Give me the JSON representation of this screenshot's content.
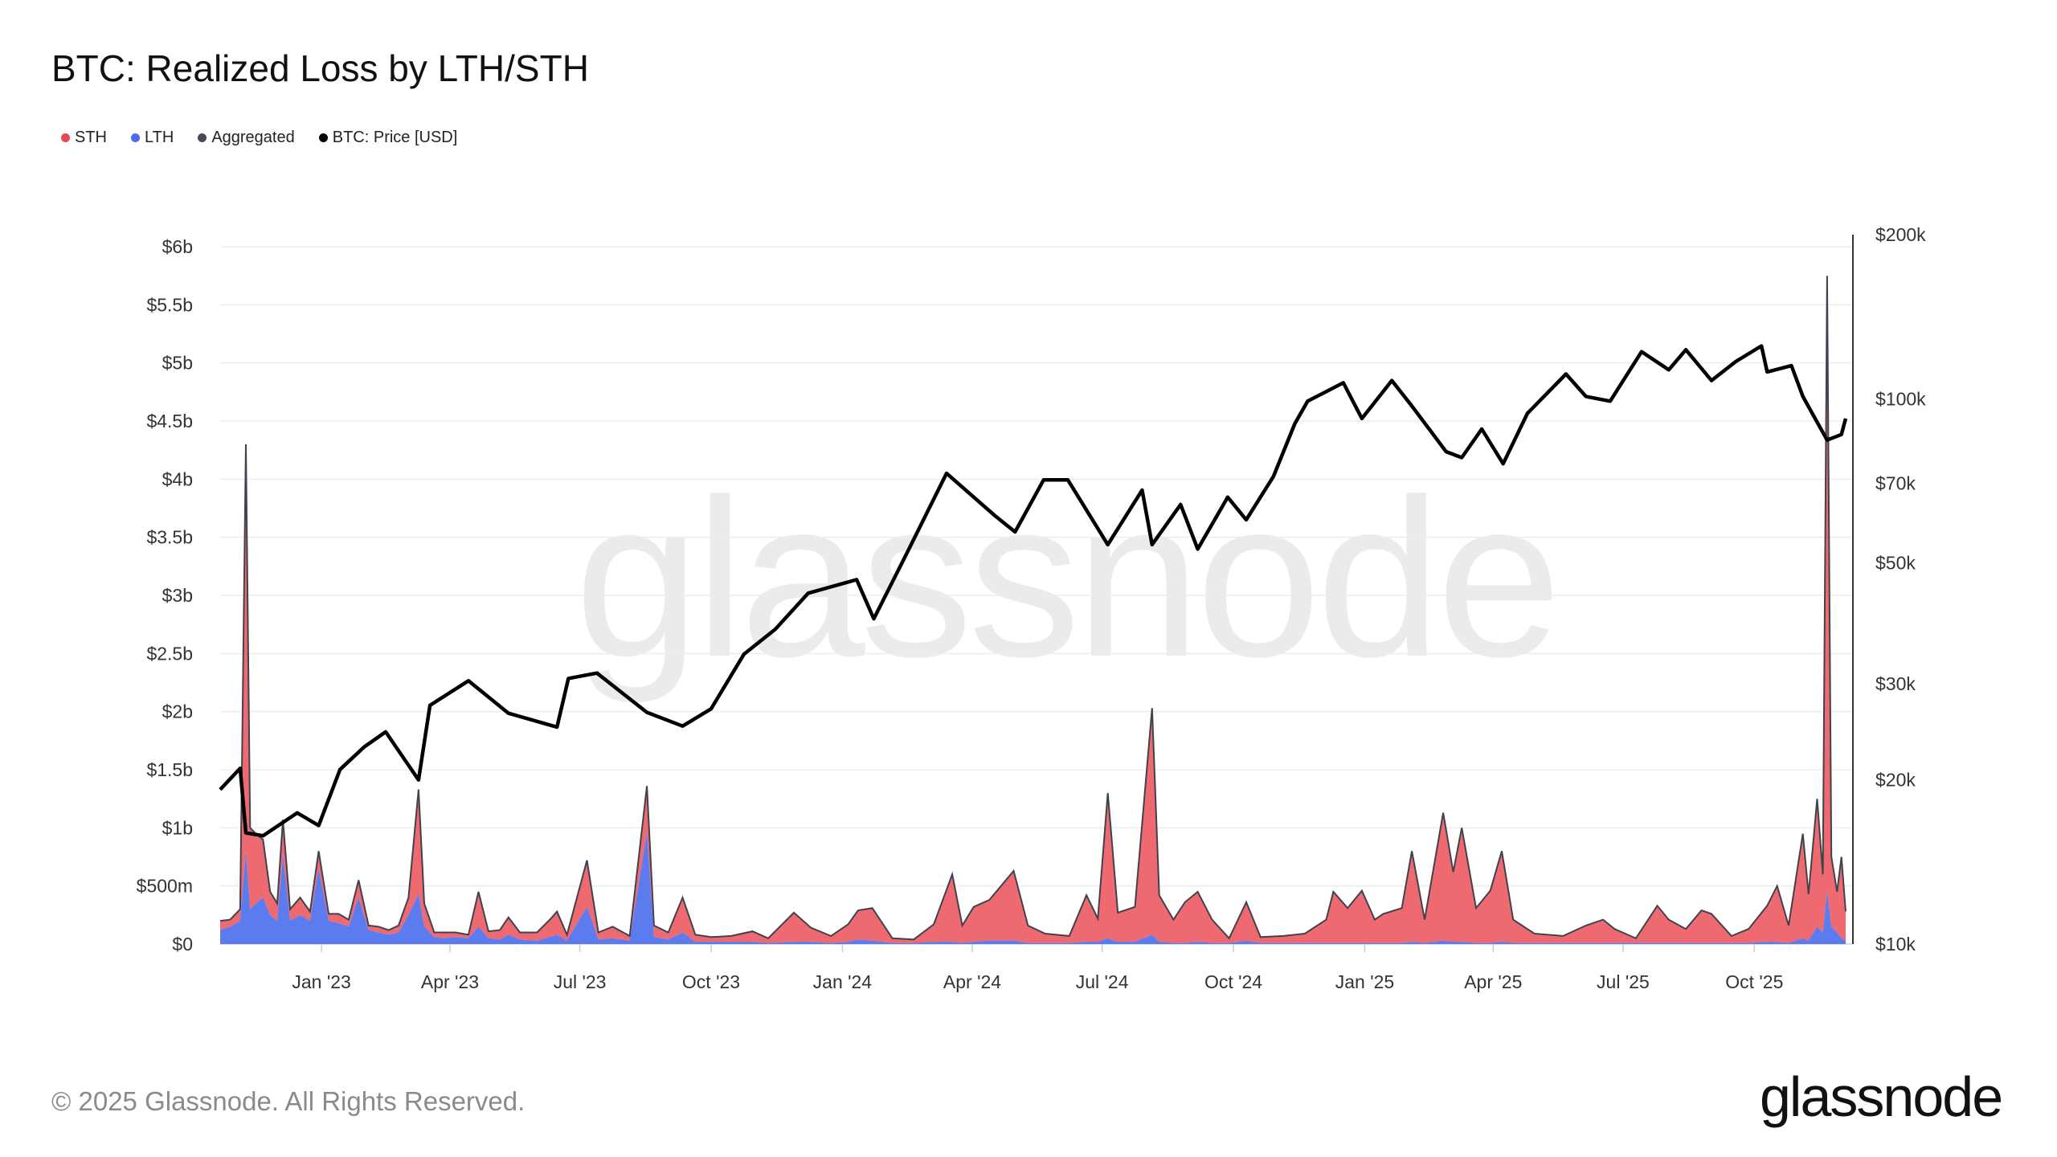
{
  "title": "BTC: Realized Loss by LTH/STH",
  "legend": [
    {
      "label": "STH",
      "color": "#e8474f"
    },
    {
      "label": "LTH",
      "color": "#4a6cec"
    },
    {
      "label": "Aggregated",
      "color": "#474b57"
    },
    {
      "label": "BTC: Price [USD]",
      "color": "#000000"
    }
  ],
  "watermark": "glassnode",
  "footer": {
    "copyright": "© 2025 Glassnode. All Rights Reserved.",
    "logo": "glassnode"
  },
  "chart_data": {
    "type": "area",
    "title": "BTC: Realized Loss by LTH/STH",
    "x_range": [
      "2022-10-22",
      "2025-12-04"
    ],
    "x_ticks": [
      {
        "date": "2023-01-01",
        "label": "Jan '23"
      },
      {
        "date": "2023-04-01",
        "label": "Apr '23"
      },
      {
        "date": "2023-07-01",
        "label": "Jul '23"
      },
      {
        "date": "2023-10-01",
        "label": "Oct '23"
      },
      {
        "date": "2024-01-01",
        "label": "Jan '24"
      },
      {
        "date": "2024-04-01",
        "label": "Apr '24"
      },
      {
        "date": "2024-07-01",
        "label": "Jul '24"
      },
      {
        "date": "2024-10-01",
        "label": "Oct '24"
      },
      {
        "date": "2025-01-01",
        "label": "Jan '25"
      },
      {
        "date": "2025-04-01",
        "label": "Apr '25"
      },
      {
        "date": "2025-07-01",
        "label": "Jul '25"
      },
      {
        "date": "2025-10-01",
        "label": "Oct '25"
      }
    ],
    "y_left": {
      "unit": "USD millions",
      "range": [
        0,
        6000
      ],
      "grid": true,
      "ticks": [
        {
          "v": 0,
          "label": "$0"
        },
        {
          "v": 500,
          "label": "$500m"
        },
        {
          "v": 1000,
          "label": "$1b"
        },
        {
          "v": 1500,
          "label": "$1.5b"
        },
        {
          "v": 2000,
          "label": "$2b"
        },
        {
          "v": 2500,
          "label": "$2.5b"
        },
        {
          "v": 3000,
          "label": "$3b"
        },
        {
          "v": 3500,
          "label": "$3.5b"
        },
        {
          "v": 4000,
          "label": "$4b"
        },
        {
          "v": 4500,
          "label": "$4.5b"
        },
        {
          "v": 5000,
          "label": "$5b"
        },
        {
          "v": 5500,
          "label": "$5.5b"
        },
        {
          "v": 6000,
          "label": "$6b"
        }
      ]
    },
    "y_right": {
      "scale": "log",
      "range": [
        10000,
        200000
      ],
      "ticks": [
        {
          "v": 10000,
          "label": "$10k"
        },
        {
          "v": 20000,
          "label": "$20k"
        },
        {
          "v": 30000,
          "label": "$30k"
        },
        {
          "v": 50000,
          "label": "$50k"
        },
        {
          "v": 70000,
          "label": "$70k"
        },
        {
          "v": 100000,
          "label": "$100k"
        },
        {
          "v": 200000,
          "label": "$200k"
        }
      ]
    },
    "series_columns": [
      "date",
      "STH",
      "LTH"
    ],
    "losses": [
      [
        "2022-10-22",
        80,
        120
      ],
      [
        "2022-10-29",
        60,
        150
      ],
      [
        "2022-11-05",
        100,
        200
      ],
      [
        "2022-11-09",
        3500,
        800
      ],
      [
        "2022-11-12",
        700,
        300
      ],
      [
        "2022-11-16",
        600,
        350
      ],
      [
        "2022-11-21",
        500,
        400
      ],
      [
        "2022-11-26",
        200,
        250
      ],
      [
        "2022-12-01",
        150,
        200
      ],
      [
        "2022-12-05",
        300,
        770
      ],
      [
        "2022-12-10",
        100,
        200
      ],
      [
        "2022-12-17",
        150,
        250
      ],
      [
        "2022-12-24",
        80,
        200
      ],
      [
        "2022-12-30",
        150,
        650
      ],
      [
        "2023-01-06",
        60,
        200
      ],
      [
        "2023-01-13",
        80,
        180
      ],
      [
        "2023-01-20",
        60,
        150
      ],
      [
        "2023-01-27",
        150,
        400
      ],
      [
        "2023-02-03",
        40,
        120
      ],
      [
        "2023-02-10",
        50,
        100
      ],
      [
        "2023-02-17",
        40,
        80
      ],
      [
        "2023-02-24",
        60,
        100
      ],
      [
        "2023-03-03",
        150,
        250
      ],
      [
        "2023-03-10",
        900,
        430
      ],
      [
        "2023-03-14",
        200,
        150
      ],
      [
        "2023-03-21",
        40,
        60
      ],
      [
        "2023-03-28",
        50,
        50
      ],
      [
        "2023-04-05",
        40,
        60
      ],
      [
        "2023-04-14",
        30,
        50
      ],
      [
        "2023-04-21",
        300,
        150
      ],
      [
        "2023-04-28",
        60,
        50
      ],
      [
        "2023-05-06",
        80,
        40
      ],
      [
        "2023-05-12",
        150,
        80
      ],
      [
        "2023-05-20",
        60,
        40
      ],
      [
        "2023-06-01",
        70,
        30
      ],
      [
        "2023-06-10",
        150,
        60
      ],
      [
        "2023-06-15",
        200,
        80
      ],
      [
        "2023-06-22",
        50,
        30
      ],
      [
        "2023-07-06",
        400,
        320
      ],
      [
        "2023-07-14",
        60,
        40
      ],
      [
        "2023-07-24",
        100,
        50
      ],
      [
        "2023-08-05",
        40,
        30
      ],
      [
        "2023-08-17",
        400,
        960
      ],
      [
        "2023-08-22",
        100,
        60
      ],
      [
        "2023-09-01",
        60,
        40
      ],
      [
        "2023-09-11",
        300,
        100
      ],
      [
        "2023-09-20",
        60,
        20
      ],
      [
        "2023-10-01",
        40,
        20
      ],
      [
        "2023-10-15",
        50,
        20
      ],
      [
        "2023-10-30",
        90,
        20
      ],
      [
        "2023-11-10",
        40,
        10
      ],
      [
        "2023-11-28",
        250,
        20
      ],
      [
        "2023-12-10",
        120,
        20
      ],
      [
        "2023-12-24",
        60,
        10
      ],
      [
        "2024-01-05",
        150,
        20
      ],
      [
        "2024-01-12",
        250,
        40
      ],
      [
        "2024-01-22",
        280,
        30
      ],
      [
        "2024-02-05",
        40,
        10
      ],
      [
        "2024-02-20",
        30,
        10
      ],
      [
        "2024-03-05",
        150,
        20
      ],
      [
        "2024-03-18",
        580,
        20
      ],
      [
        "2024-03-25",
        150,
        10
      ],
      [
        "2024-04-02",
        300,
        20
      ],
      [
        "2024-04-13",
        350,
        30
      ],
      [
        "2024-04-30",
        600,
        30
      ],
      [
        "2024-05-10",
        150,
        10
      ],
      [
        "2024-05-22",
        80,
        10
      ],
      [
        "2024-06-08",
        60,
        10
      ],
      [
        "2024-06-20",
        400,
        20
      ],
      [
        "2024-06-28",
        200,
        20
      ],
      [
        "2024-07-05",
        1250,
        50
      ],
      [
        "2024-07-12",
        250,
        20
      ],
      [
        "2024-07-24",
        300,
        20
      ],
      [
        "2024-08-05",
        1950,
        80
      ],
      [
        "2024-08-10",
        400,
        20
      ],
      [
        "2024-08-20",
        200,
        10
      ],
      [
        "2024-08-28",
        350,
        10
      ],
      [
        "2024-09-06",
        430,
        20
      ],
      [
        "2024-09-16",
        200,
        10
      ],
      [
        "2024-09-28",
        40,
        10
      ],
      [
        "2024-10-10",
        330,
        30
      ],
      [
        "2024-10-20",
        50,
        10
      ],
      [
        "2024-11-05",
        60,
        10
      ],
      [
        "2024-11-20",
        80,
        10
      ],
      [
        "2024-12-05",
        200,
        10
      ],
      [
        "2024-12-10",
        440,
        10
      ],
      [
        "2024-12-20",
        300,
        10
      ],
      [
        "2024-12-30",
        450,
        10
      ],
      [
        "2025-01-08",
        200,
        10
      ],
      [
        "2025-01-14",
        250,
        10
      ],
      [
        "2025-01-27",
        300,
        10
      ],
      [
        "2025-02-03",
        780,
        20
      ],
      [
        "2025-02-12",
        200,
        10
      ],
      [
        "2025-02-25",
        1100,
        30
      ],
      [
        "2025-03-04",
        600,
        20
      ],
      [
        "2025-03-10",
        980,
        20
      ],
      [
        "2025-03-20",
        300,
        10
      ],
      [
        "2025-03-30",
        450,
        10
      ],
      [
        "2025-04-07",
        780,
        20
      ],
      [
        "2025-04-15",
        200,
        10
      ],
      [
        "2025-04-30",
        80,
        10
      ],
      [
        "2025-05-20",
        60,
        10
      ],
      [
        "2025-06-05",
        150,
        10
      ],
      [
        "2025-06-17",
        200,
        10
      ],
      [
        "2025-06-25",
        120,
        10
      ],
      [
        "2025-07-10",
        40,
        10
      ],
      [
        "2025-07-25",
        320,
        10
      ],
      [
        "2025-08-02",
        200,
        10
      ],
      [
        "2025-08-14",
        120,
        10
      ],
      [
        "2025-08-25",
        280,
        10
      ],
      [
        "2025-09-01",
        250,
        10
      ],
      [
        "2025-09-15",
        60,
        10
      ],
      [
        "2025-09-27",
        120,
        10
      ],
      [
        "2025-10-10",
        310,
        20
      ],
      [
        "2025-10-17",
        480,
        20
      ],
      [
        "2025-10-25",
        150,
        10
      ],
      [
        "2025-11-04",
        900,
        50
      ],
      [
        "2025-11-08",
        400,
        30
      ],
      [
        "2025-11-14",
        1100,
        150
      ],
      [
        "2025-11-18",
        500,
        100
      ],
      [
        "2025-11-21",
        5300,
        450
      ],
      [
        "2025-11-24",
        600,
        150
      ],
      [
        "2025-11-28",
        350,
        100
      ],
      [
        "2025-12-01",
        700,
        50
      ],
      [
        "2025-12-04",
        250,
        30
      ]
    ],
    "price": [
      [
        "2022-10-22",
        19200
      ],
      [
        "2022-11-05",
        21000
      ],
      [
        "2022-11-09",
        16000
      ],
      [
        "2022-11-21",
        15800
      ],
      [
        "2022-12-15",
        17400
      ],
      [
        "2022-12-30",
        16500
      ],
      [
        "2023-01-14",
        20900
      ],
      [
        "2023-01-31",
        23000
      ],
      [
        "2023-02-15",
        24500
      ],
      [
        "2023-03-10",
        20000
      ],
      [
        "2023-03-18",
        27400
      ],
      [
        "2023-04-14",
        30400
      ],
      [
        "2023-05-12",
        26500
      ],
      [
        "2023-06-15",
        25000
      ],
      [
        "2023-06-23",
        30700
      ],
      [
        "2023-07-13",
        31400
      ],
      [
        "2023-08-17",
        26600
      ],
      [
        "2023-09-11",
        25100
      ],
      [
        "2023-10-01",
        27000
      ],
      [
        "2023-10-24",
        34000
      ],
      [
        "2023-11-15",
        37800
      ],
      [
        "2023-12-08",
        44000
      ],
      [
        "2024-01-11",
        46600
      ],
      [
        "2024-01-23",
        39500
      ],
      [
        "2024-02-15",
        52000
      ],
      [
        "2024-03-14",
        73000
      ],
      [
        "2024-04-17",
        61000
      ],
      [
        "2024-05-01",
        57000
      ],
      [
        "2024-05-21",
        71000
      ],
      [
        "2024-06-07",
        71000
      ],
      [
        "2024-07-05",
        54000
      ],
      [
        "2024-07-29",
        68000
      ],
      [
        "2024-08-05",
        54000
      ],
      [
        "2024-08-25",
        64000
      ],
      [
        "2024-09-06",
        53000
      ],
      [
        "2024-09-27",
        66000
      ],
      [
        "2024-10-10",
        60000
      ],
      [
        "2024-10-29",
        72000
      ],
      [
        "2024-11-13",
        90000
      ],
      [
        "2024-11-22",
        99000
      ],
      [
        "2024-12-17",
        107000
      ],
      [
        "2024-12-30",
        92000
      ],
      [
        "2025-01-20",
        108000
      ],
      [
        "2025-02-03",
        97000
      ],
      [
        "2025-02-27",
        80000
      ],
      [
        "2025-03-10",
        78000
      ],
      [
        "2025-03-24",
        88000
      ],
      [
        "2025-04-08",
        76000
      ],
      [
        "2025-04-25",
        94000
      ],
      [
        "2025-05-22",
        111000
      ],
      [
        "2025-06-05",
        101000
      ],
      [
        "2025-06-22",
        99000
      ],
      [
        "2025-07-14",
        122000
      ],
      [
        "2025-08-02",
        113000
      ],
      [
        "2025-08-14",
        123000
      ],
      [
        "2025-09-01",
        108000
      ],
      [
        "2025-09-18",
        117000
      ],
      [
        "2025-10-06",
        125000
      ],
      [
        "2025-10-10",
        112000
      ],
      [
        "2025-10-27",
        115000
      ],
      [
        "2025-11-04",
        101000
      ],
      [
        "2025-11-21",
        84000
      ],
      [
        "2025-12-01",
        86000
      ],
      [
        "2025-12-04",
        92000
      ]
    ]
  }
}
